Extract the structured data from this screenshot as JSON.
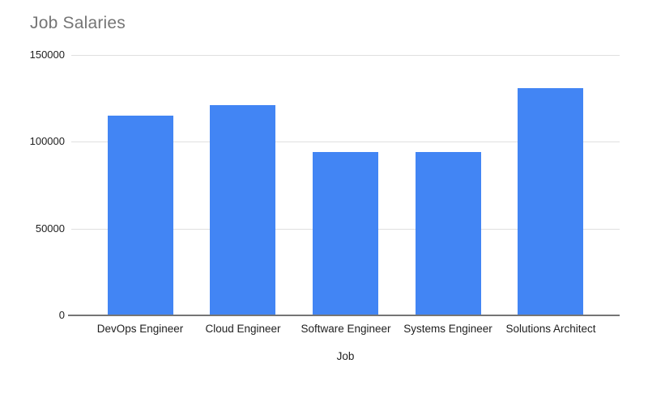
{
  "page": {
    "background_color": "#ffffff"
  },
  "chart_data": {
    "type": "bar",
    "title": "Job Salaries",
    "categories": [
      "DevOps Engineer",
      "Cloud Engineer",
      "Software Engineer",
      "Systems Engineer",
      "Solutions Architect"
    ],
    "values": [
      115000,
      121000,
      94000,
      94000,
      131000
    ],
    "xlabel": "Job",
    "ylabel": "",
    "ylim": [
      0,
      150000
    ],
    "yticks": [
      0,
      50000,
      100000,
      150000
    ],
    "ytick_labels": [
      "0",
      "50000",
      "100000",
      "150000"
    ],
    "grid": true,
    "legend_position": "none",
    "bar_color": "#4285F4",
    "grid_color": "#e0e0e0",
    "axis_line_color": "#757575",
    "title_color": "#757575",
    "tick_label_color": "#212121"
  }
}
